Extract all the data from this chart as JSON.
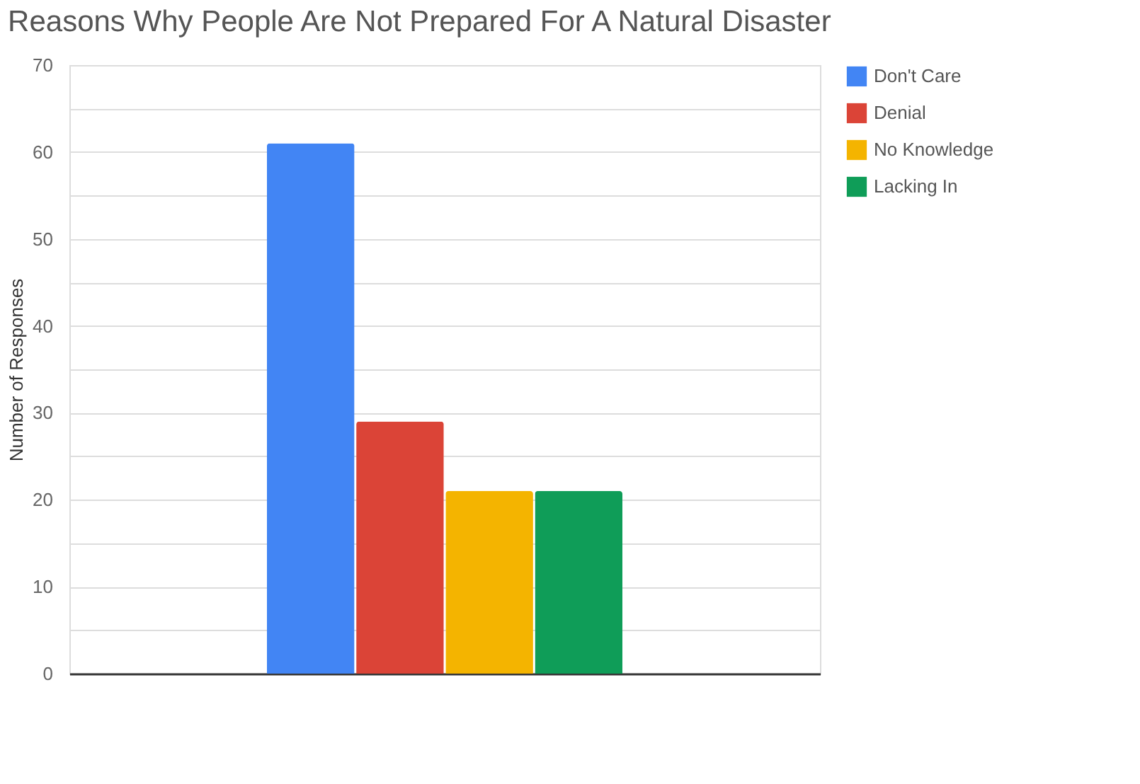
{
  "chart_data": {
    "type": "bar",
    "title": "Reasons Why People Are Not Prepared For A Natural Disaster",
    "ylabel": "Number of Responses",
    "categories": [
      null
    ],
    "series": [
      {
        "name": "Don't Care",
        "color": "#4285f4",
        "values": [
          61
        ]
      },
      {
        "name": "Denial",
        "color": "#db4437",
        "values": [
          29
        ]
      },
      {
        "name": "No Knowledge",
        "color": "#f4b400",
        "values": [
          21
        ]
      },
      {
        "name": "Lacking In",
        "color": "#0f9d58",
        "values": [
          21
        ]
      }
    ],
    "ylim": [
      0,
      70
    ],
    "yticks": [
      0,
      {
        "value": 5,
        "label": null
      },
      10,
      {
        "value": 15,
        "label": null
      },
      20,
      {
        "value": 25,
        "label": null
      },
      30,
      {
        "value": 35,
        "label": null
      },
      40,
      {
        "value": 45,
        "label": null
      },
      50,
      {
        "value": 55,
        "label": null
      },
      60,
      {
        "value": 65,
        "label": null
      },
      70
    ],
    "grid": true,
    "legend": "top right"
  }
}
